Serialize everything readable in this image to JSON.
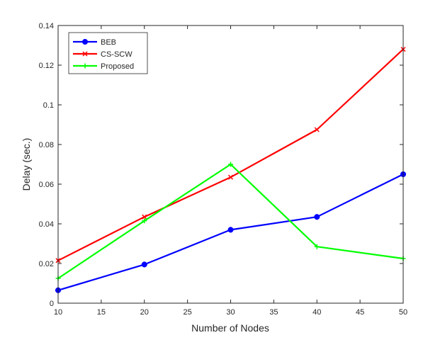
{
  "chart_data": {
    "type": "line",
    "title": "",
    "xlabel": "Number of Nodes",
    "ylabel": "Delay (sec.)",
    "xlim": [
      10,
      50
    ],
    "ylim": [
      0,
      0.14
    ],
    "x_ticks": [
      10,
      15,
      20,
      25,
      30,
      35,
      40,
      45,
      50
    ],
    "x_tick_labels": [
      "10",
      "15",
      "20",
      "25",
      "30",
      "35",
      "40",
      "45",
      "50"
    ],
    "y_ticks": [
      0,
      0.02,
      0.04,
      0.06,
      0.08,
      0.1,
      0.12,
      0.14
    ],
    "y_tick_labels": [
      "0",
      "0.02",
      "0.04",
      "0.06",
      "0.08",
      "0.1",
      "0.12",
      "0.14"
    ],
    "grid": false,
    "legend_position": "top-left",
    "x": [
      10,
      20,
      30,
      40,
      50
    ],
    "series": [
      {
        "name": "BEB",
        "values": [
          0.0065,
          0.0195,
          0.037,
          0.0435,
          0.065
        ],
        "color": "#0000ff",
        "marker": "asterisk"
      },
      {
        "name": "CS-SCW",
        "values": [
          0.0215,
          0.0435,
          0.0635,
          0.0875,
          0.128
        ],
        "color": "#ff0000",
        "marker": "x"
      },
      {
        "name": "Proposed",
        "values": [
          0.0125,
          0.0415,
          0.07,
          0.0285,
          0.0225
        ],
        "color": "#00ff00",
        "marker": "plus"
      }
    ]
  }
}
